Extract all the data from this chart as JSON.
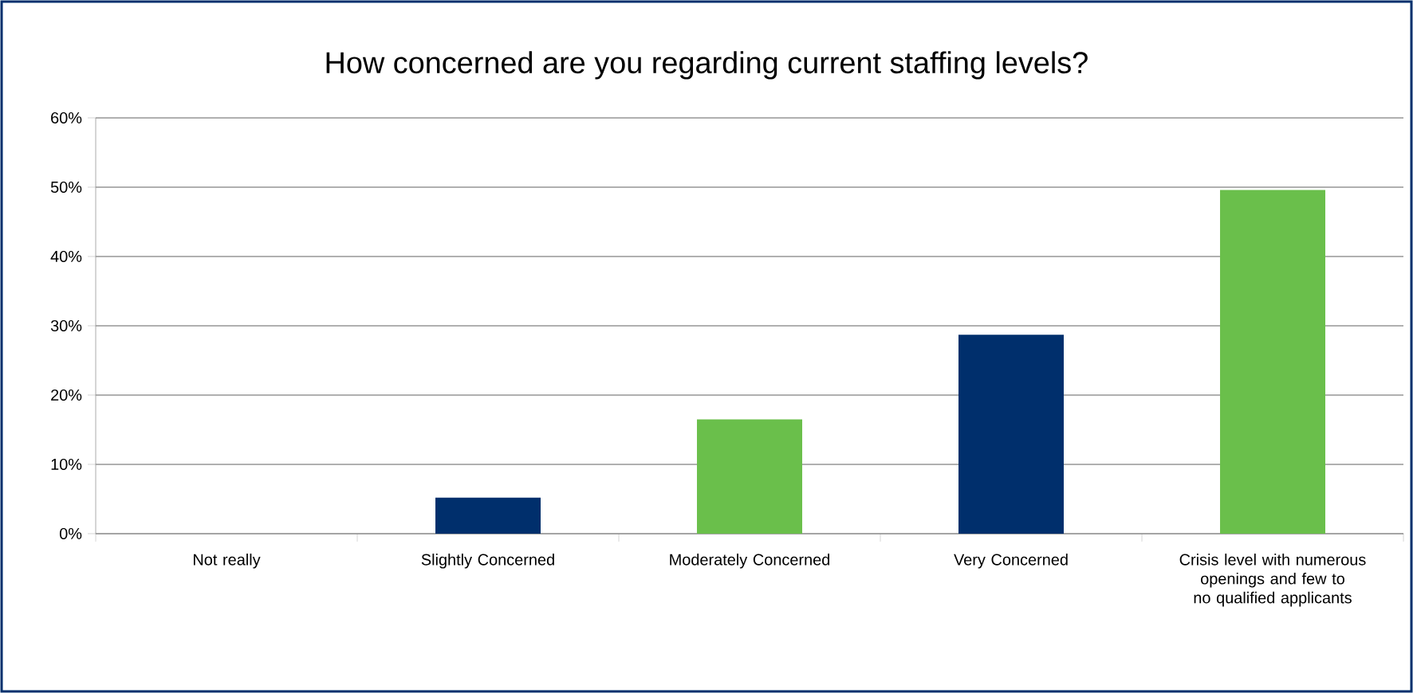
{
  "chart_data": {
    "type": "bar",
    "title": "How concerned are you regarding current staffing levels?",
    "categories": [
      "Not really",
      "Slightly Concerned",
      "Moderately Concerned",
      "Very Concerned",
      "Crisis level with numerous openings and few to no qualified applicants"
    ],
    "values": [
      0,
      5.2,
      16.5,
      28.7,
      49.6
    ],
    "colors": [
      "#002f6c",
      "#002f6c",
      "#6abf4b",
      "#002f6c",
      "#6abf4b"
    ],
    "ylim": [
      0,
      60
    ],
    "yticks": [
      {
        "value": 0,
        "label": "0%"
      },
      {
        "value": 10,
        "label": "10%"
      },
      {
        "value": 20,
        "label": "20%"
      },
      {
        "value": 30,
        "label": "30%"
      },
      {
        "value": 40,
        "label": "40%"
      },
      {
        "value": 50,
        "label": "50%"
      },
      {
        "value": 60,
        "label": "60%"
      }
    ],
    "grid": "y"
  }
}
